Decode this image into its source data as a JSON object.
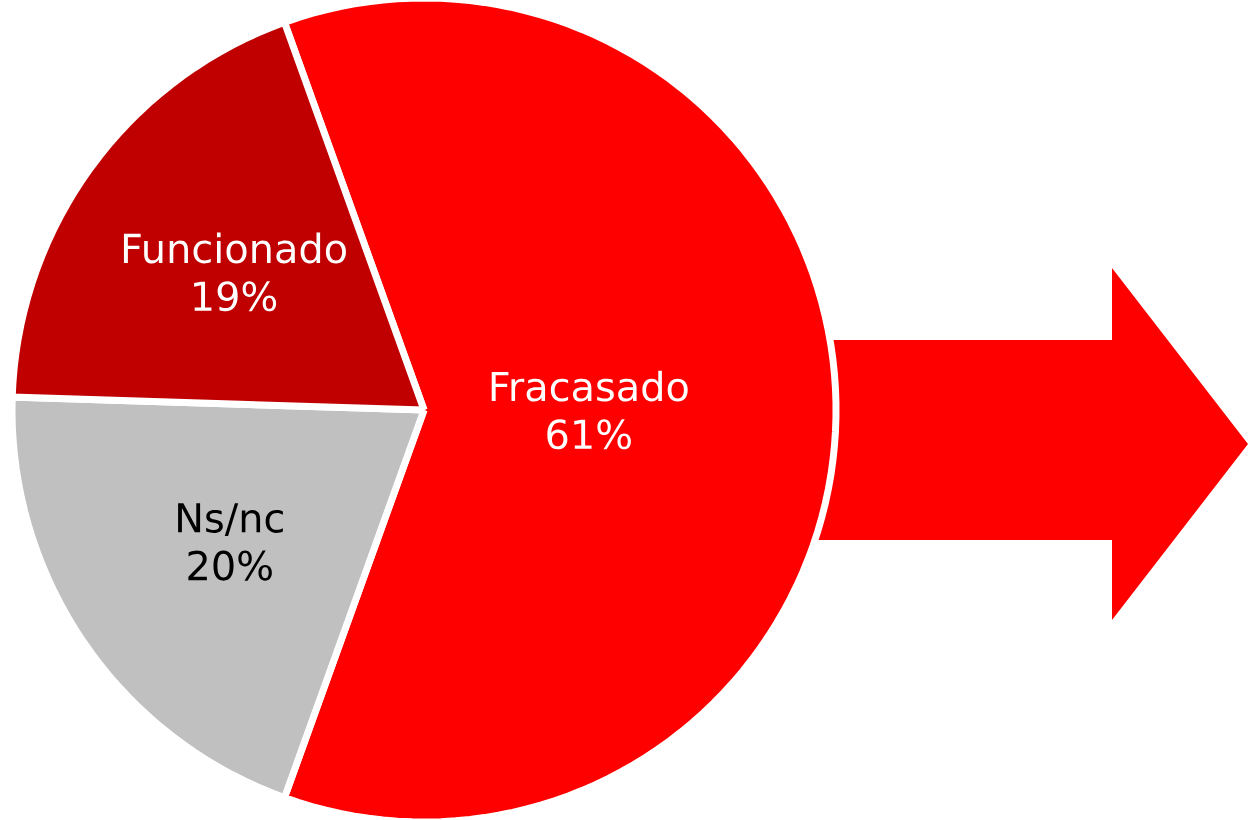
{
  "chart_data": {
    "type": "pie",
    "categories": [
      "Fracasado",
      "Ns/nc",
      "Funcionado"
    ],
    "values": [
      61,
      20,
      19
    ],
    "colors": [
      "#ff0000",
      "#c0c0c0",
      "#c00000"
    ],
    "value_labels": [
      "61%",
      "20%",
      "19%"
    ]
  }
}
